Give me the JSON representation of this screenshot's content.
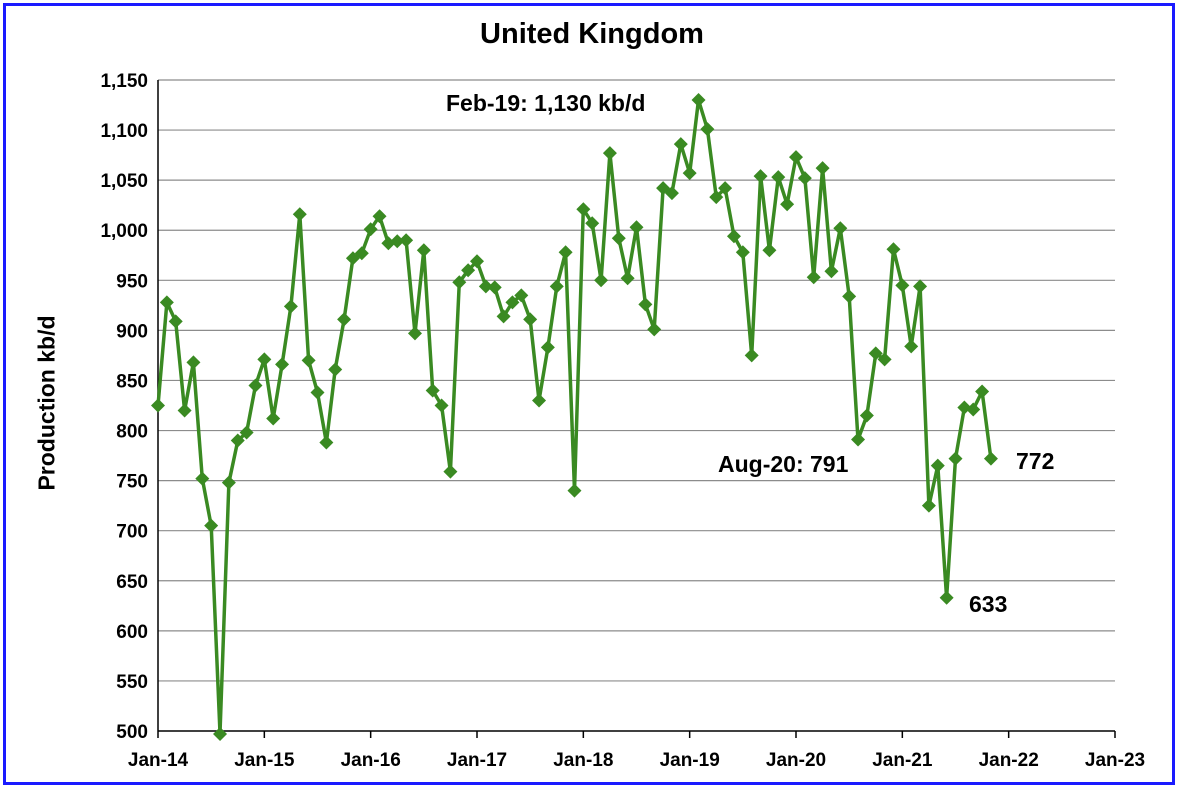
{
  "chart_data": {
    "type": "line",
    "title": "United Kingdom",
    "xlabel": "",
    "ylabel": "Production kb/d",
    "ylim": [
      500,
      1150
    ],
    "ytick_labels": [
      "500",
      "550",
      "600",
      "650",
      "700",
      "750",
      "800",
      "850",
      "900",
      "950",
      "1,000",
      "1,050",
      "1,100",
      "1,150"
    ],
    "xtick_labels": [
      "Jan-14",
      "Jan-15",
      "Jan-16",
      "Jan-17",
      "Jan-18",
      "Jan-19",
      "Jan-20",
      "Jan-21",
      "Jan-22",
      "Jan-23"
    ],
    "x_start": "Jan-14",
    "x_step": "month",
    "grid": true,
    "marker": "diamond",
    "color": "#3a8a22",
    "series": [
      {
        "values": [
          825,
          928,
          909,
          820,
          868,
          752,
          705,
          497,
          748,
          790,
          798,
          845,
          871,
          812,
          866,
          924,
          1016,
          870,
          838,
          788,
          861,
          911,
          972,
          977,
          1001,
          1014,
          987,
          989,
          990,
          897,
          980,
          840,
          825,
          759,
          948,
          960,
          969,
          944,
          943,
          914,
          928,
          935,
          911,
          830,
          883,
          944,
          978,
          740,
          1021,
          1007,
          950,
          1077,
          992,
          952,
          1003,
          926,
          901,
          1042,
          1037,
          1086,
          1057,
          1130,
          1101,
          1033,
          1042,
          994,
          978,
          875,
          1054,
          980,
          1053,
          1026,
          1073,
          1052,
          953,
          1062,
          959,
          1002,
          934,
          791,
          815,
          877,
          871,
          981,
          945,
          884,
          944,
          725,
          765,
          633,
          772,
          823,
          821,
          839,
          772
        ]
      }
    ],
    "annotations": [
      {
        "text": "Feb-19: 1,130 kb/d"
      },
      {
        "text": "Aug-20: 791"
      },
      {
        "text": "772"
      },
      {
        "text": "633"
      }
    ]
  }
}
